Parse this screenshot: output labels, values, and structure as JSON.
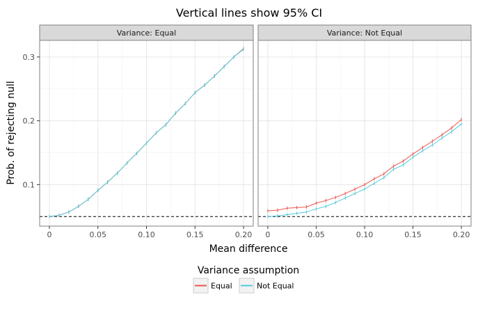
{
  "chart_data": {
    "type": "line",
    "title": "Vertical lines show 95% CI",
    "xlabel": "Mean difference",
    "ylabel": "Prob. of rejecting null",
    "xlim": [
      -0.01,
      0.21
    ],
    "ylim": [
      0.035,
      0.326
    ],
    "x_ticks": [
      0,
      0.05,
      0.1,
      0.15,
      0.2
    ],
    "x_tick_labels": [
      "0",
      "0.05",
      "0.10",
      "0.15",
      "0.20"
    ],
    "y_ticks": [
      0.1,
      0.2,
      0.3
    ],
    "y_tick_labels": [
      "0.1",
      "0.2",
      "0.3"
    ],
    "reference_line": 0.05,
    "grid": true,
    "legend": {
      "title": "Variance assumption",
      "position": "bottom",
      "entries": [
        "Equal",
        "Not Equal"
      ]
    },
    "colors": {
      "Equal": "#e8554e",
      "Not Equal": "#54cbd9"
    },
    "x": [
      0,
      0.01,
      0.02,
      0.03,
      0.04,
      0.05,
      0.06,
      0.07,
      0.08,
      0.09,
      0.1,
      0.11,
      0.12,
      0.13,
      0.14,
      0.15,
      0.16,
      0.17,
      0.18,
      0.19,
      0.2
    ],
    "panels": [
      {
        "label": "Variance: Equal",
        "series": [
          {
            "name": "Equal",
            "values": [
              0.05,
              0.052,
              0.057,
              0.066,
              0.077,
              0.091,
              0.104,
              0.118,
              0.134,
              0.149,
              0.165,
              0.181,
              0.194,
              0.212,
              0.227,
              0.244,
              0.256,
              0.27,
              0.285,
              0.3,
              0.313
            ]
          },
          {
            "name": "Not Equal",
            "values": [
              0.05,
              0.052,
              0.057,
              0.066,
              0.077,
              0.091,
              0.104,
              0.118,
              0.134,
              0.149,
              0.165,
              0.181,
              0.194,
              0.212,
              0.227,
              0.244,
              0.256,
              0.27,
              0.285,
              0.3,
              0.312
            ]
          }
        ]
      },
      {
        "label": "Variance: Not Equal",
        "series": [
          {
            "name": "Equal",
            "values": [
              0.059,
              0.06,
              0.063,
              0.064,
              0.065,
              0.071,
              0.075,
              0.08,
              0.086,
              0.093,
              0.1,
              0.109,
              0.117,
              0.129,
              0.137,
              0.148,
              0.158,
              0.168,
              0.178,
              0.189,
              0.202
            ]
          },
          {
            "name": "Not Equal",
            "values": [
              0.05,
              0.051,
              0.053,
              0.055,
              0.057,
              0.062,
              0.066,
              0.072,
              0.079,
              0.086,
              0.093,
              0.102,
              0.111,
              0.124,
              0.131,
              0.143,
              0.153,
              0.162,
              0.173,
              0.183,
              0.195
            ]
          }
        ]
      }
    ]
  }
}
